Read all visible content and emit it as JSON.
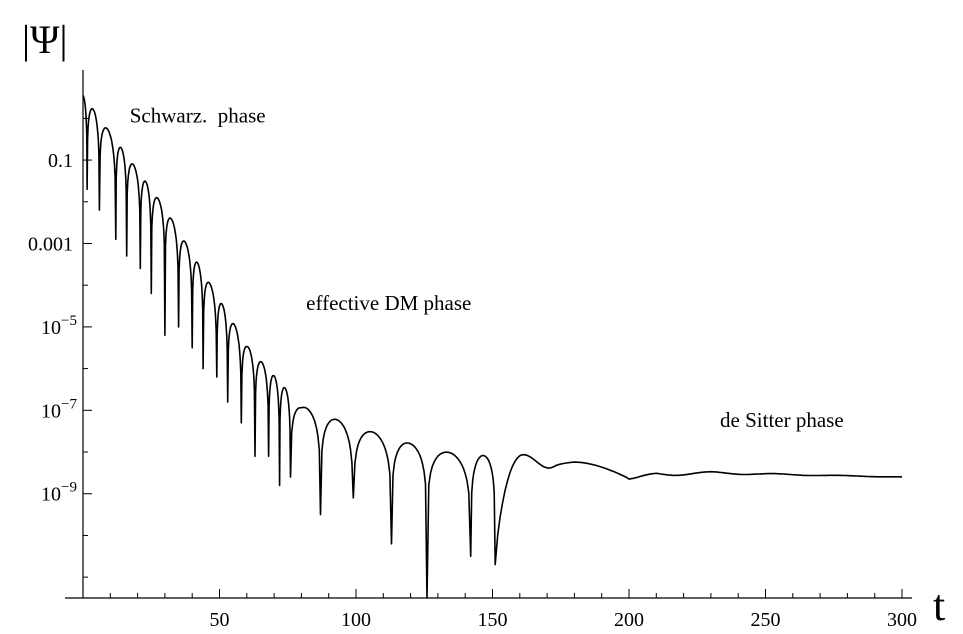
{
  "chart_data": {
    "type": "line",
    "ylabel": "|Ψ|",
    "xlabel": "t",
    "yscale": "log",
    "xlim": [
      0,
      300
    ],
    "ylim_exp": [
      -11.5,
      0.8
    ],
    "grid": false,
    "x_ticks": [
      {
        "value": 50,
        "label": "50"
      },
      {
        "value": 100,
        "label": "100"
      },
      {
        "value": 150,
        "label": "150"
      },
      {
        "value": 200,
        "label": "200"
      },
      {
        "value": 250,
        "label": "250"
      },
      {
        "value": 300,
        "label": "300"
      }
    ],
    "y_ticks": [
      {
        "exp": -1,
        "label": "0.1"
      },
      {
        "exp": -3,
        "label": "0.001"
      },
      {
        "exp": -5,
        "label": "10",
        "sup": "−5"
      },
      {
        "exp": -7,
        "label": "10",
        "sup": "−7"
      },
      {
        "exp": -9,
        "label": "10",
        "sup": "−9"
      }
    ],
    "annotations": [
      {
        "text": "Schwarz.  phase",
        "x": 42,
        "exp": -0.1
      },
      {
        "text": "effective DM phase",
        "x": 112,
        "exp": -4.6
      },
      {
        "text": "de Sitter phase",
        "x": 256,
        "exp": -7.4
      }
    ],
    "envelope_exp": [
      [
        0,
        0.55
      ],
      [
        30,
        -2.15
      ],
      [
        60,
        -5.45
      ],
      [
        80,
        -6.9
      ],
      [
        100,
        -7.4
      ],
      [
        120,
        -7.8
      ],
      [
        140,
        -8.1
      ],
      [
        160,
        -8.05
      ],
      [
        180,
        -8.2
      ],
      [
        200,
        -8.5
      ],
      [
        230,
        -8.45
      ],
      [
        300,
        -8.55
      ]
    ],
    "zeros": [
      {
        "t": 1.5,
        "exp": -1.7
      },
      {
        "t": 6,
        "exp": -2.2
      },
      {
        "t": 12,
        "exp": -2.9
      },
      {
        "t": 16,
        "exp": -3.3
      },
      {
        "t": 21,
        "exp": -3.6
      },
      {
        "t": 25,
        "exp": -4.2
      },
      {
        "t": 30,
        "exp": -5.2
      },
      {
        "t": 35,
        "exp": -5.0
      },
      {
        "t": 40,
        "exp": -5.5
      },
      {
        "t": 44,
        "exp": -6.0
      },
      {
        "t": 49,
        "exp": -6.2
      },
      {
        "t": 53,
        "exp": -6.8
      },
      {
        "t": 58,
        "exp": -7.3
      },
      {
        "t": 63,
        "exp": -8.1
      },
      {
        "t": 68,
        "exp": -8.1
      },
      {
        "t": 72,
        "exp": -8.8
      },
      {
        "t": 76,
        "exp": -8.6
      },
      {
        "t": 87,
        "exp": -9.5
      },
      {
        "t": 99,
        "exp": -9.1
      },
      {
        "t": 113,
        "exp": -10.2
      },
      {
        "t": 126,
        "exp": -11.5
      },
      {
        "t": 142,
        "exp": -10.5
      },
      {
        "t": 151,
        "exp": -10.7
      },
      {
        "t": 172.5,
        "exp": -8.35,
        "smooth": true
      },
      {
        "t": 200,
        "exp": -8.65,
        "smooth": true
      }
    ]
  }
}
